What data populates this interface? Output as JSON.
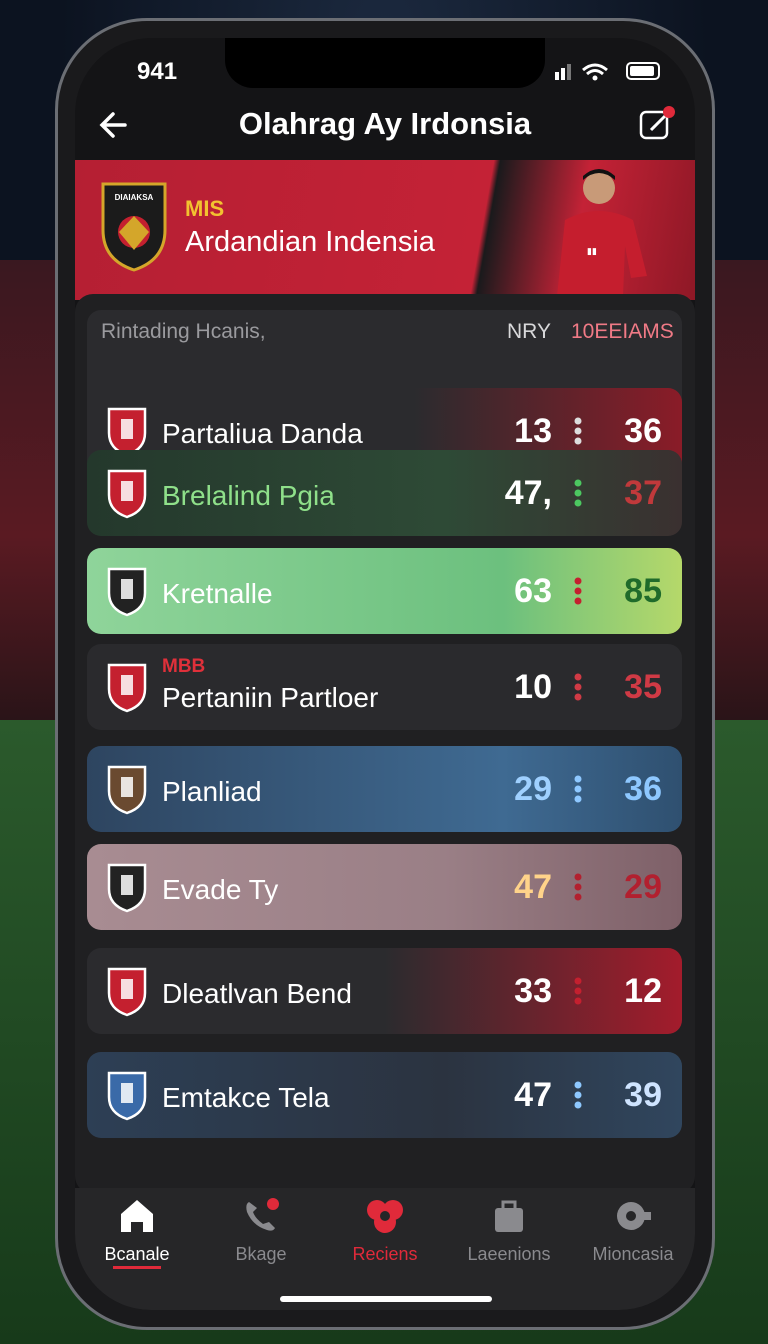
{
  "status_bar": {
    "time": "941"
  },
  "header": {
    "title": "Olahrag Ay Irdonsia"
  },
  "banner": {
    "crest_label": "DIAIAKSA",
    "tag": "MIS",
    "title": "Ardandian Indensia"
  },
  "table": {
    "columns": [
      "Rintading Hcanis,",
      "NRY",
      "10EEIAMS"
    ],
    "rows": [
      {
        "name": "Partaliua Danda",
        "score_1": "13",
        "score_2": "36"
      },
      {
        "name": "Brelalind Pgia",
        "score_1": "47,",
        "score_2": "37"
      },
      {
        "name": "Kretnalle",
        "score_1": "63",
        "score_2": "85"
      },
      {
        "tag": "MBB",
        "name": "Pertaniin Partloer",
        "score_1": "10",
        "score_2": "35"
      },
      {
        "name": "Planliad",
        "score_1": "29",
        "score_2": "36"
      },
      {
        "name": "Evade Ty",
        "score_1": "47",
        "score_2": "29"
      },
      {
        "name": "Dleatlvan Bend",
        "score_1": "33",
        "score_2": "12"
      },
      {
        "name": "Emtakce Tela",
        "score_1": "47",
        "score_2": "39"
      }
    ]
  },
  "nav": {
    "items": [
      "Bcanale",
      "Bkage",
      "Reciens",
      "Laeenions",
      "Mioncasia"
    ]
  }
}
